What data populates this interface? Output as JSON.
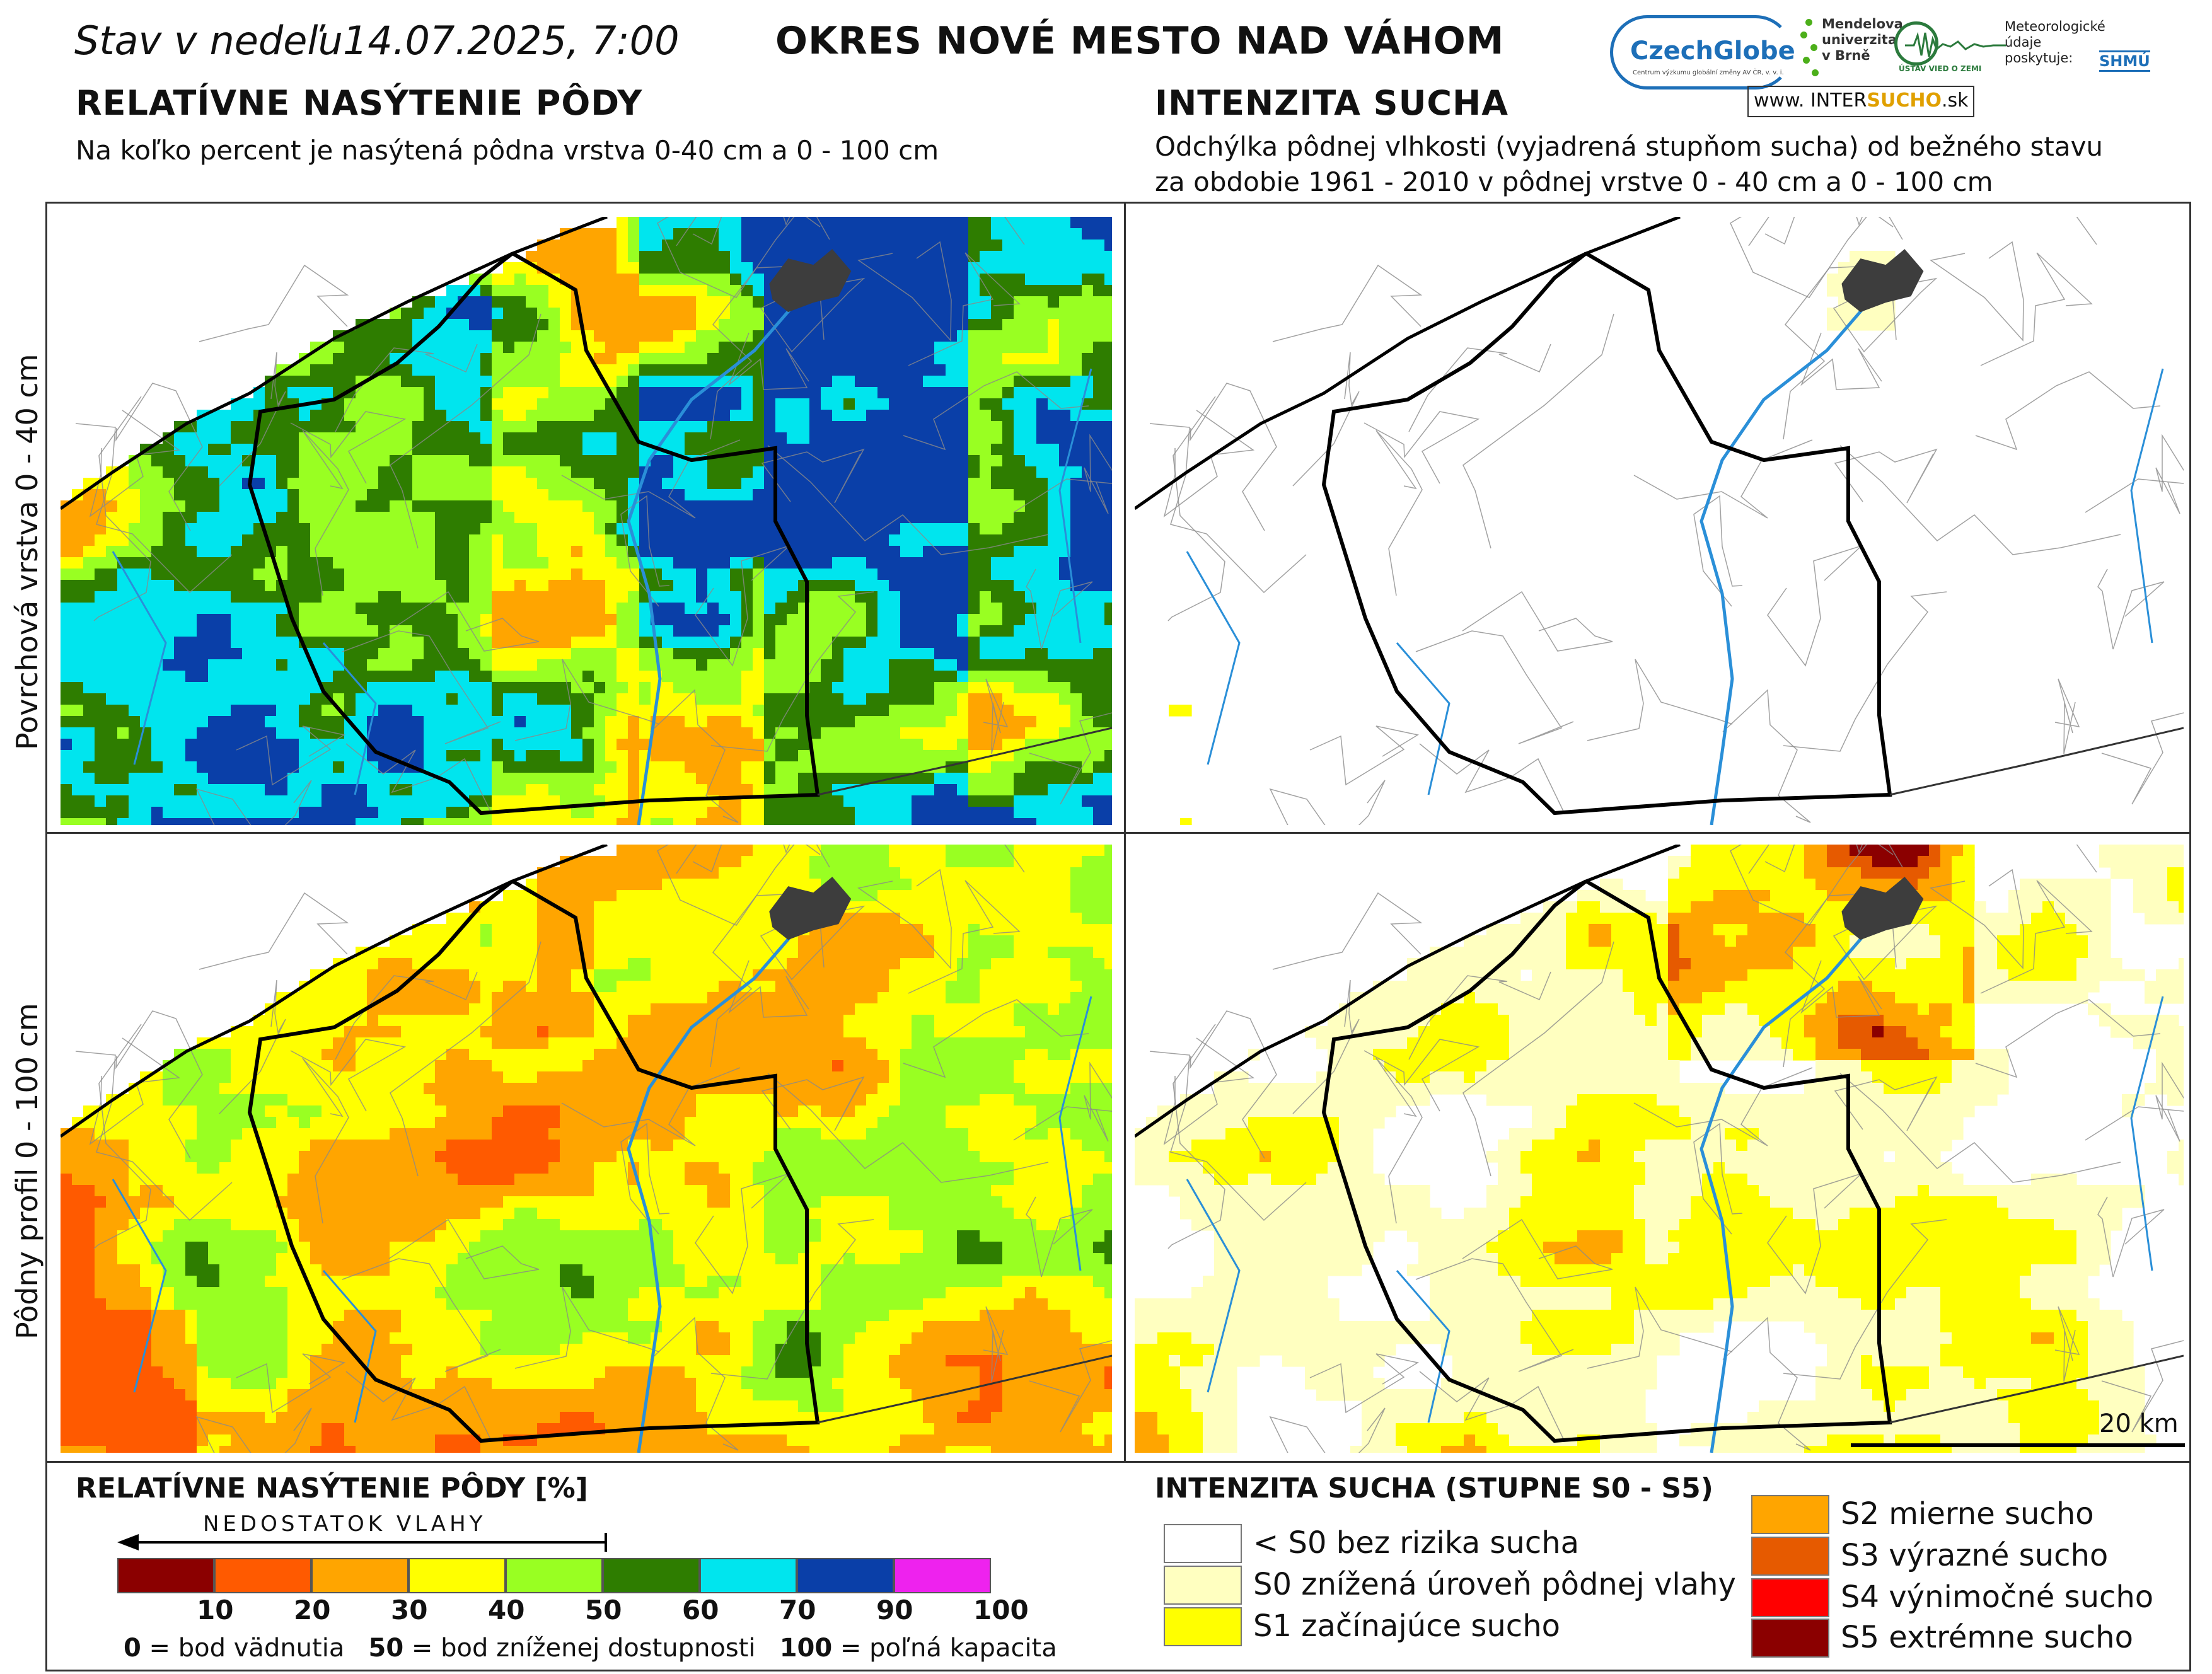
{
  "header": {
    "date_prefix": "Stav v nedeľu",
    "date_value": "14.07.2025, 7:00",
    "district": "OKRES  NOVÉ MESTO NAD VÁHOM"
  },
  "left_section": {
    "title": "RELATÍVNE NASÝTENIE PÔDY",
    "subtitle": "Na koľko percent je nasýtená pôdna vrstva 0-40 cm a 0 - 100 cm"
  },
  "right_section": {
    "title": "INTENZITA SUCHA",
    "subtitle_line1": "Odchýlka pôdnej vlhkosti (vyjadrená stupňom sucha) od bežného stavu",
    "subtitle_line2": "za obdobie 1961 - 2010 v pôdnej vrstve 0 - 40 cm a 0 - 100 cm"
  },
  "logos": {
    "czechglobe": "CzechGlobe",
    "czechglobe_small": "Centrum výzkumu globální změny AV ČR, v. v. i.",
    "mendelu_line1": "Mendelova",
    "mendelu_line2": "univerzita",
    "mendelu_line3": "v Brně",
    "usvz": "ÚSTAV VIED O ZEMI",
    "meteo_line1": "Meteorologické",
    "meteo_line2": "údaje",
    "meteo_line3": "poskytuje:",
    "shmu": "SHMÚ",
    "intersucho_prefix": "www.",
    "intersucho_inter": "INTER",
    "intersucho_sucho": "SUCHO",
    "intersucho_suffix": ".sk"
  },
  "row_labels": {
    "top": "Povrchová vrstva 0 - 40 cm",
    "bottom": "Pôdny profil 0 - 100 cm"
  },
  "scalebar": {
    "label": "20 km"
  },
  "legend_saturation": {
    "title": "RELATÍVNE NASÝTENIE PÔDY [%]",
    "arrow_label": "NEDOSTATOK VLAHY",
    "classes": [
      {
        "color": "#8b0000"
      },
      {
        "color": "#ff5a00"
      },
      {
        "color": "#ffa500"
      },
      {
        "color": "#ffff00"
      },
      {
        "color": "#99ff22"
      },
      {
        "color": "#2e7d00"
      },
      {
        "color": "#00e5ee"
      },
      {
        "color": "#0a3fa8"
      },
      {
        "color": "#ee22ee"
      }
    ],
    "ticks": [
      "10",
      "20",
      "30",
      "40",
      "50",
      "60",
      "70",
      "90",
      "100"
    ],
    "note_0_value": "0",
    "note_0_text": " = bod vädnutia",
    "note_50_value": "50",
    "note_50_text": " = bod zníženej dostupnosti",
    "note_100_value": "100",
    "note_100_text": " = poľná kapacita"
  },
  "legend_drought": {
    "title": "INTENZITA SUCHA (STUPNE S0 - S5)",
    "items": [
      {
        "label": "< S0 bez rizika sucha",
        "color": "#ffffff"
      },
      {
        "label": "S0 znížená úroveň pôdnej vlahy",
        "color": "#ffffc0"
      },
      {
        "label": "S1 začínajúce sucho",
        "color": "#ffff00"
      },
      {
        "label": "S2 mierne sucho",
        "color": "#ffa500"
      },
      {
        "label": "S3 výrazné sucho",
        "color": "#e65a00"
      },
      {
        "label": "S4 výnimočné sucho",
        "color": "#ff0000"
      },
      {
        "label": "S5 extrémne sucho",
        "color": "#8b0000"
      }
    ]
  },
  "colors": {
    "town": "#3d3d3d",
    "river": "#2a8fd8",
    "border": "#000000"
  }
}
